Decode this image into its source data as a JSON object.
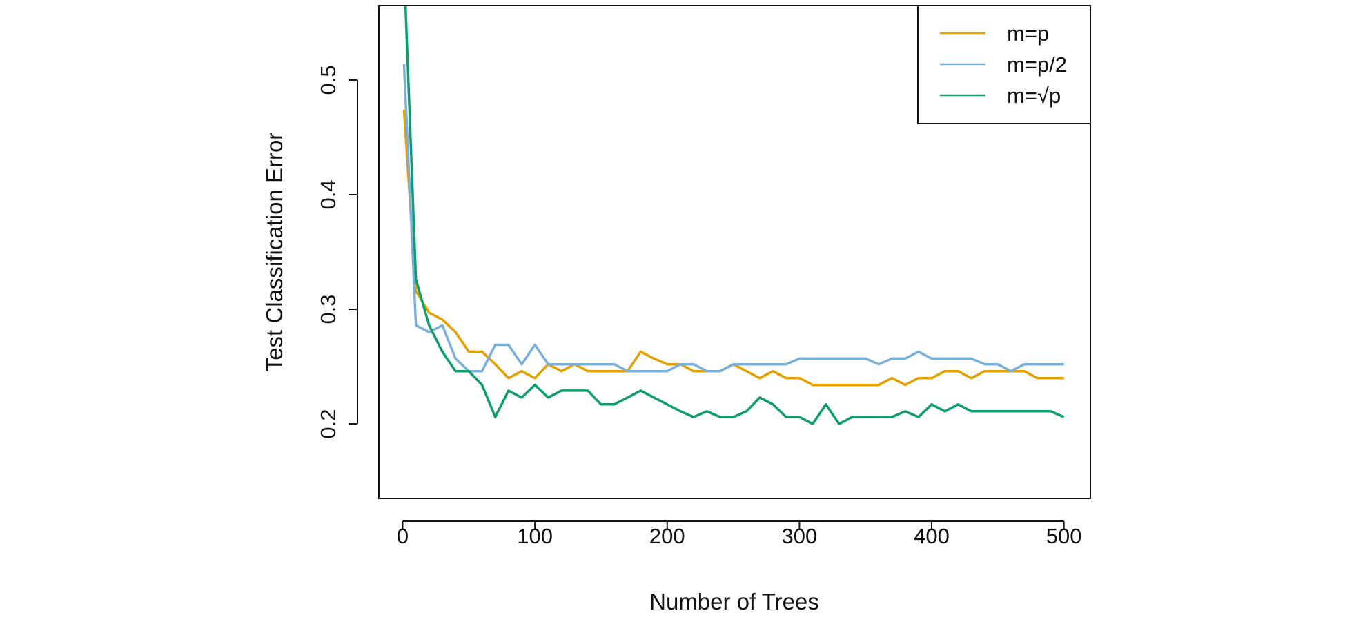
{
  "chart_data": {
    "type": "line",
    "title": "",
    "xlabel": "Number of Trees",
    "ylabel": "Test Classification Error",
    "xlim": [
      -18,
      520
    ],
    "ylim": [
      0.135,
      0.565
    ],
    "xticks": [
      0,
      100,
      200,
      300,
      400,
      500
    ],
    "xtick_labels": [
      "0",
      "100",
      "200",
      "300",
      "400",
      "500"
    ],
    "yticks": [
      0.2,
      0.3,
      0.4,
      0.5
    ],
    "ytick_labels": [
      "0.2",
      "0.3",
      "0.4",
      "0.5"
    ],
    "grid": false,
    "legend_position": "top-right",
    "x": [
      1,
      10,
      20,
      30,
      40,
      50,
      60,
      70,
      80,
      90,
      100,
      110,
      120,
      130,
      140,
      150,
      160,
      170,
      180,
      190,
      200,
      210,
      220,
      230,
      240,
      250,
      260,
      270,
      280,
      290,
      300,
      310,
      320,
      330,
      340,
      350,
      360,
      370,
      380,
      390,
      400,
      410,
      420,
      430,
      440,
      450,
      460,
      470,
      480,
      490,
      500
    ],
    "series": [
      {
        "name": "m=p",
        "color": "#E5A000",
        "values": [
          0.474,
          0.316,
          0.297,
          0.291,
          0.28,
          0.263,
          0.263,
          0.252,
          0.24,
          0.246,
          0.24,
          0.252,
          0.246,
          0.252,
          0.246,
          0.246,
          0.246,
          0.246,
          0.263,
          0.257,
          0.252,
          0.252,
          0.246,
          0.246,
          0.246,
          0.252,
          0.246,
          0.24,
          0.246,
          0.24,
          0.24,
          0.234,
          0.234,
          0.234,
          0.234,
          0.234,
          0.234,
          0.24,
          0.234,
          0.24,
          0.24,
          0.246,
          0.246,
          0.24,
          0.246,
          0.246,
          0.246,
          0.246,
          0.24,
          0.24,
          0.24
        ]
      },
      {
        "name": "m=p/2",
        "color": "#7BAFDB",
        "values": [
          0.514,
          0.286,
          0.28,
          0.286,
          0.257,
          0.246,
          0.246,
          0.269,
          0.269,
          0.252,
          0.269,
          0.252,
          0.252,
          0.252,
          0.252,
          0.252,
          0.252,
          0.246,
          0.246,
          0.246,
          0.246,
          0.252,
          0.252,
          0.246,
          0.246,
          0.252,
          0.252,
          0.252,
          0.252,
          0.252,
          0.257,
          0.257,
          0.257,
          0.257,
          0.257,
          0.257,
          0.252,
          0.257,
          0.257,
          0.263,
          0.257,
          0.257,
          0.257,
          0.257,
          0.252,
          0.252,
          0.246,
          0.252,
          0.252,
          0.252,
          0.252
        ]
      },
      {
        "name": "m=√p",
        "color": "#0E9E6E",
        "values": [
          0.6,
          0.326,
          0.286,
          0.263,
          0.246,
          0.246,
          0.234,
          0.206,
          0.229,
          0.223,
          0.234,
          0.223,
          0.229,
          0.229,
          0.229,
          0.217,
          0.217,
          0.223,
          0.229,
          0.223,
          0.217,
          0.211,
          0.206,
          0.211,
          0.206,
          0.206,
          0.211,
          0.223,
          0.217,
          0.206,
          0.206,
          0.2,
          0.217,
          0.2,
          0.206,
          0.206,
          0.206,
          0.206,
          0.211,
          0.206,
          0.217,
          0.211,
          0.217,
          0.211,
          0.211,
          0.211,
          0.211,
          0.211,
          0.211,
          0.211,
          0.206
        ]
      }
    ]
  }
}
